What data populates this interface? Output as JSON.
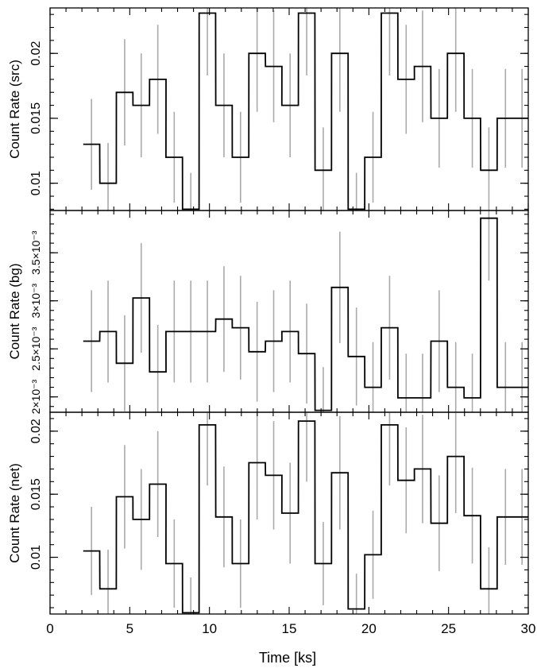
{
  "chart_data": {
    "type": "line",
    "style": "step-histogram-with-error-bars",
    "colors": {
      "step": "#000000",
      "errorbar": "#aaaaaa",
      "frame": "#000000"
    },
    "xlabel": "Time [ks]",
    "xlim": [
      0,
      30
    ],
    "x_ticks": [
      0,
      5,
      10,
      15,
      20,
      25,
      30
    ],
    "bin_width_ks": 1.034,
    "bin_centers": [
      2.6,
      3.64,
      4.68,
      5.72,
      6.76,
      7.79,
      8.83,
      9.87,
      10.91,
      11.95,
      12.99,
      14.03,
      15.06,
      16.1,
      17.14,
      18.18,
      19.22,
      20.26,
      21.3,
      22.34,
      23.37,
      24.41,
      25.45,
      26.49,
      27.53,
      28.57,
      29.61
    ],
    "panels": [
      {
        "ylabel": "Count Rate (src)",
        "ylim": [
          0.0079,
          0.0235
        ],
        "y_ticks": [
          0.01,
          0.015,
          0.02
        ],
        "y_tick_labels": [
          "0.01",
          "0.015",
          "0.02"
        ],
        "values": [
          0.013,
          0.01,
          0.017,
          0.016,
          0.018,
          0.012,
          0.008,
          0.0231,
          0.016,
          0.012,
          0.02,
          0.019,
          0.016,
          0.0231,
          0.011,
          0.02,
          0.008,
          0.012,
          0.0231,
          0.018,
          0.019,
          0.015,
          0.02,
          0.015,
          0.011,
          0.015,
          0.015
        ],
        "errors": [
          0.0035,
          0.0031,
          0.0041,
          0.004,
          0.0042,
          0.0035,
          0.0028,
          0.0048,
          0.004,
          0.0035,
          0.0045,
          0.0043,
          0.004,
          0.0048,
          0.0033,
          0.0045,
          0.0028,
          0.0035,
          0.0048,
          0.0042,
          0.0043,
          0.0038,
          0.0045,
          0.0038,
          0.0033,
          0.0038,
          0.0038
        ]
      },
      {
        "ylabel": "Count Rate (bg)",
        "ylim": [
          0.00184,
          0.00394
        ],
        "y_ticks": [
          0.002,
          0.0025,
          0.003,
          0.0035
        ],
        "y_tick_labels": [
          "2×10⁻³",
          "2.5×10⁻³",
          "3×10⁻³",
          "3.5×10⁻³"
        ],
        "values": [
          0.00258,
          0.00268,
          0.00235,
          0.00303,
          0.00226,
          0.00268,
          0.00268,
          0.00268,
          0.00281,
          0.00272,
          0.00247,
          0.00258,
          0.00268,
          0.00245,
          0.00186,
          0.00314,
          0.00242,
          0.0021,
          0.00272,
          0.00199,
          0.00199,
          0.00258,
          0.0021,
          0.00199,
          0.00386,
          0.0021,
          0.0021
        ],
        "errors": [
          0.00053,
          0.00053,
          0.0005,
          0.00057,
          0.00049,
          0.00053,
          0.00053,
          0.00053,
          0.00055,
          0.00054,
          0.00052,
          0.00053,
          0.00053,
          0.00052,
          0.00045,
          0.00058,
          0.00051,
          0.00047,
          0.00054,
          0.00046,
          0.00046,
          0.00053,
          0.00047,
          0.00046,
          0.00065,
          0.00047,
          0.00047
        ]
      },
      {
        "ylabel": "Count Rate (net)",
        "ylim": [
          0.0055,
          0.0215
        ],
        "y_ticks": [
          0.01,
          0.015,
          0.02
        ],
        "y_tick_labels": [
          "0.01",
          "0.015",
          "0.02"
        ],
        "values": [
          0.0105,
          0.0075,
          0.0148,
          0.013,
          0.0158,
          0.0095,
          0.0056,
          0.0205,
          0.0132,
          0.0095,
          0.0175,
          0.0165,
          0.0135,
          0.0208,
          0.0095,
          0.0167,
          0.0059,
          0.0102,
          0.0205,
          0.0161,
          0.017,
          0.0127,
          0.018,
          0.0133,
          0.0075,
          0.0132,
          0.0132
        ],
        "errors": [
          0.0035,
          0.0031,
          0.0041,
          0.004,
          0.0042,
          0.0035,
          0.0028,
          0.0048,
          0.004,
          0.0035,
          0.0045,
          0.0043,
          0.004,
          0.0048,
          0.0033,
          0.0045,
          0.0028,
          0.0035,
          0.0048,
          0.0042,
          0.0043,
          0.0038,
          0.0045,
          0.0038,
          0.0033,
          0.0038,
          0.0038
        ]
      }
    ]
  }
}
